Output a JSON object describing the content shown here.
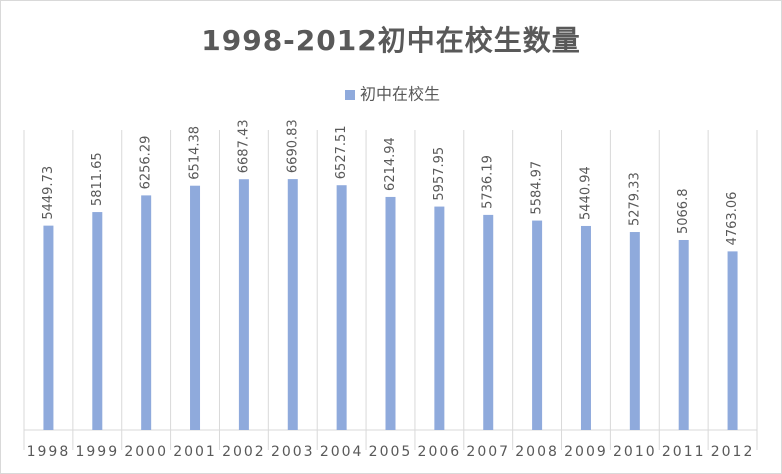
{
  "chart_data": {
    "type": "bar",
    "title": "1998-2012初中在校生数量",
    "legend_position": "top",
    "series": [
      {
        "name": "初中在校生",
        "color": "#8faadc",
        "values": [
          5449.73,
          5811.65,
          6256.29,
          6514.38,
          6687.43,
          6690.83,
          6527.51,
          6214.94,
          5957.95,
          5736.19,
          5584.97,
          5440.94,
          5279.33,
          5066.8,
          4763.06
        ]
      }
    ],
    "categories": [
      "1998",
      "1999",
      "2000",
      "2001",
      "2002",
      "2003",
      "2004",
      "2005",
      "2006",
      "2007",
      "2008",
      "2009",
      "2010",
      "2011",
      "2012"
    ],
    "ylim": [
      0,
      8000
    ]
  }
}
